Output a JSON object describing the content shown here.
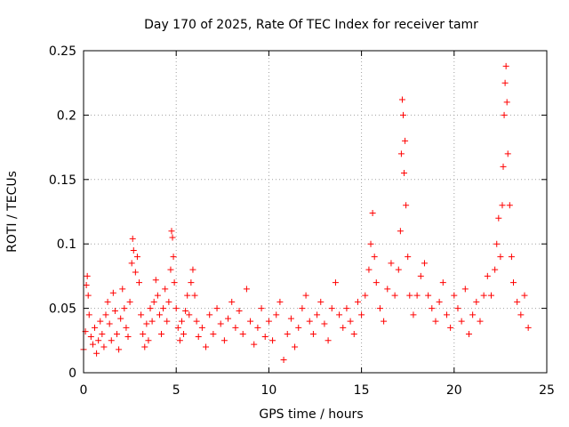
{
  "chart_data": {
    "type": "scatter",
    "title": "Day 170 of 2025, Rate Of TEC Index for receiver tamr",
    "xlabel": "GPS time / hours",
    "ylabel": "ROTI / TECUs",
    "xlim": [
      0,
      25
    ],
    "ylim": [
      0,
      0.25
    ],
    "xticks": [
      0,
      5,
      10,
      15,
      20,
      25
    ],
    "xtick_labels": [
      "0",
      "5",
      "10",
      "15",
      "20",
      "25"
    ],
    "yticks": [
      0,
      0.05,
      0.1,
      0.15,
      0.2,
      0.25
    ],
    "ytick_labels": [
      "0",
      "0.05",
      "0.1",
      "0.15",
      "0.2",
      "0.25"
    ],
    "grid": true,
    "marker": "+",
    "series": [
      {
        "name": "ROTI",
        "color": "#ff0000",
        "points": [
          [
            0.0,
            0.018
          ],
          [
            0.1,
            0.032
          ],
          [
            0.15,
            0.068
          ],
          [
            0.2,
            0.075
          ],
          [
            0.25,
            0.06
          ],
          [
            0.3,
            0.045
          ],
          [
            0.4,
            0.028
          ],
          [
            0.5,
            0.022
          ],
          [
            0.6,
            0.035
          ],
          [
            0.7,
            0.015
          ],
          [
            0.8,
            0.025
          ],
          [
            0.9,
            0.04
          ],
          [
            1.0,
            0.03
          ],
          [
            1.1,
            0.02
          ],
          [
            1.2,
            0.045
          ],
          [
            1.3,
            0.055
          ],
          [
            1.4,
            0.038
          ],
          [
            1.5,
            0.025
          ],
          [
            1.6,
            0.062
          ],
          [
            1.7,
            0.048
          ],
          [
            1.8,
            0.03
          ],
          [
            1.9,
            0.018
          ],
          [
            2.0,
            0.042
          ],
          [
            2.1,
            0.065
          ],
          [
            2.2,
            0.05
          ],
          [
            2.3,
            0.035
          ],
          [
            2.4,
            0.028
          ],
          [
            2.5,
            0.055
          ],
          [
            2.6,
            0.085
          ],
          [
            2.65,
            0.104
          ],
          [
            2.7,
            0.095
          ],
          [
            2.8,
            0.078
          ],
          [
            2.9,
            0.09
          ],
          [
            3.0,
            0.07
          ],
          [
            3.1,
            0.045
          ],
          [
            3.2,
            0.03
          ],
          [
            3.3,
            0.02
          ],
          [
            3.4,
            0.038
          ],
          [
            3.5,
            0.025
          ],
          [
            3.6,
            0.05
          ],
          [
            3.7,
            0.04
          ],
          [
            3.8,
            0.055
          ],
          [
            3.9,
            0.072
          ],
          [
            4.0,
            0.06
          ],
          [
            4.1,
            0.045
          ],
          [
            4.2,
            0.03
          ],
          [
            4.3,
            0.05
          ],
          [
            4.4,
            0.065
          ],
          [
            4.5,
            0.04
          ],
          [
            4.6,
            0.055
          ],
          [
            4.7,
            0.08
          ],
          [
            4.75,
            0.11
          ],
          [
            4.8,
            0.105
          ],
          [
            4.85,
            0.09
          ],
          [
            4.9,
            0.07
          ],
          [
            5.0,
            0.05
          ],
          [
            5.1,
            0.035
          ],
          [
            5.2,
            0.025
          ],
          [
            5.3,
            0.04
          ],
          [
            5.4,
            0.03
          ],
          [
            5.5,
            0.048
          ],
          [
            5.6,
            0.06
          ],
          [
            5.7,
            0.045
          ],
          [
            5.8,
            0.07
          ],
          [
            5.9,
            0.08
          ],
          [
            6.0,
            0.06
          ],
          [
            6.1,
            0.04
          ],
          [
            6.2,
            0.028
          ],
          [
            6.4,
            0.035
          ],
          [
            6.6,
            0.02
          ],
          [
            6.8,
            0.045
          ],
          [
            7.0,
            0.03
          ],
          [
            7.2,
            0.05
          ],
          [
            7.4,
            0.038
          ],
          [
            7.6,
            0.025
          ],
          [
            7.8,
            0.042
          ],
          [
            8.0,
            0.055
          ],
          [
            8.2,
            0.035
          ],
          [
            8.4,
            0.048
          ],
          [
            8.6,
            0.03
          ],
          [
            8.8,
            0.065
          ],
          [
            9.0,
            0.04
          ],
          [
            9.2,
            0.022
          ],
          [
            9.4,
            0.035
          ],
          [
            9.6,
            0.05
          ],
          [
            9.8,
            0.028
          ],
          [
            10.0,
            0.04
          ],
          [
            10.2,
            0.025
          ],
          [
            10.4,
            0.045
          ],
          [
            10.6,
            0.055
          ],
          [
            10.8,
            0.01
          ],
          [
            11.0,
            0.03
          ],
          [
            11.2,
            0.042
          ],
          [
            11.4,
            0.02
          ],
          [
            11.6,
            0.035
          ],
          [
            11.8,
            0.05
          ],
          [
            12.0,
            0.06
          ],
          [
            12.2,
            0.04
          ],
          [
            12.4,
            0.03
          ],
          [
            12.6,
            0.045
          ],
          [
            12.8,
            0.055
          ],
          [
            13.0,
            0.038
          ],
          [
            13.2,
            0.025
          ],
          [
            13.4,
            0.05
          ],
          [
            13.6,
            0.07
          ],
          [
            13.8,
            0.045
          ],
          [
            14.0,
            0.035
          ],
          [
            14.2,
            0.05
          ],
          [
            14.4,
            0.04
          ],
          [
            14.6,
            0.03
          ],
          [
            14.8,
            0.055
          ],
          [
            15.0,
            0.045
          ],
          [
            15.2,
            0.06
          ],
          [
            15.4,
            0.08
          ],
          [
            15.5,
            0.1
          ],
          [
            15.6,
            0.124
          ],
          [
            15.7,
            0.09
          ],
          [
            15.8,
            0.07
          ],
          [
            16.0,
            0.05
          ],
          [
            16.2,
            0.04
          ],
          [
            16.4,
            0.065
          ],
          [
            16.6,
            0.085
          ],
          [
            16.8,
            0.06
          ],
          [
            17.0,
            0.08
          ],
          [
            17.1,
            0.11
          ],
          [
            17.15,
            0.17
          ],
          [
            17.2,
            0.212
          ],
          [
            17.25,
            0.2
          ],
          [
            17.3,
            0.155
          ],
          [
            17.35,
            0.18
          ],
          [
            17.4,
            0.13
          ],
          [
            17.5,
            0.09
          ],
          [
            17.6,
            0.06
          ],
          [
            17.8,
            0.045
          ],
          [
            18.0,
            0.06
          ],
          [
            18.2,
            0.075
          ],
          [
            18.4,
            0.085
          ],
          [
            18.6,
            0.06
          ],
          [
            18.8,
            0.05
          ],
          [
            19.0,
            0.04
          ],
          [
            19.2,
            0.055
          ],
          [
            19.4,
            0.07
          ],
          [
            19.6,
            0.045
          ],
          [
            19.8,
            0.035
          ],
          [
            20.0,
            0.06
          ],
          [
            20.2,
            0.05
          ],
          [
            20.4,
            0.04
          ],
          [
            20.6,
            0.065
          ],
          [
            20.8,
            0.03
          ],
          [
            21.0,
            0.045
          ],
          [
            21.2,
            0.055
          ],
          [
            21.4,
            0.04
          ],
          [
            21.6,
            0.06
          ],
          [
            21.8,
            0.075
          ],
          [
            22.0,
            0.06
          ],
          [
            22.2,
            0.08
          ],
          [
            22.3,
            0.1
          ],
          [
            22.4,
            0.12
          ],
          [
            22.5,
            0.09
          ],
          [
            22.6,
            0.13
          ],
          [
            22.65,
            0.16
          ],
          [
            22.7,
            0.2
          ],
          [
            22.75,
            0.225
          ],
          [
            22.8,
            0.238
          ],
          [
            22.85,
            0.21
          ],
          [
            22.9,
            0.17
          ],
          [
            23.0,
            0.13
          ],
          [
            23.1,
            0.09
          ],
          [
            23.2,
            0.07
          ],
          [
            23.4,
            0.055
          ],
          [
            23.6,
            0.045
          ],
          [
            23.8,
            0.06
          ],
          [
            24.0,
            0.035
          ]
        ]
      }
    ]
  }
}
